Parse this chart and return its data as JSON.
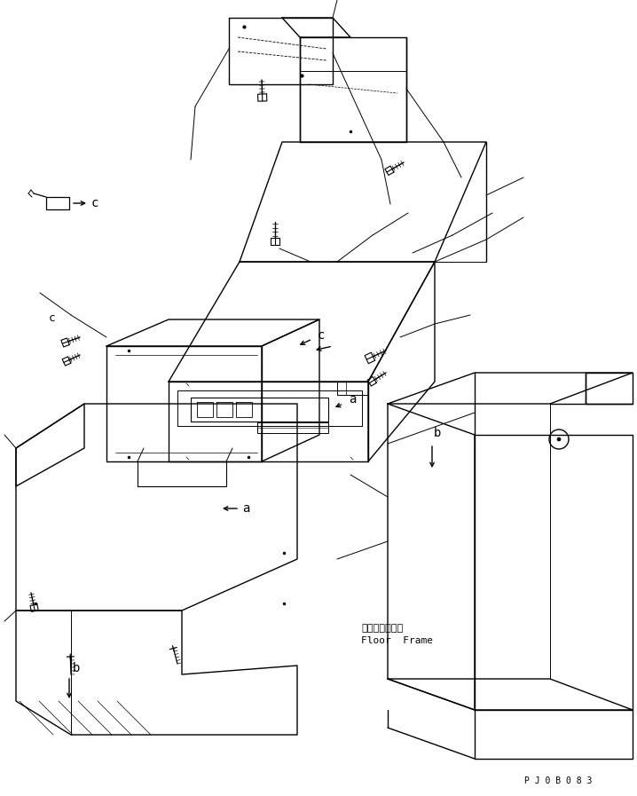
{
  "background_color": "#ffffff",
  "line_color": "#000000",
  "lw": 1.0,
  "fig_width": 7.18,
  "fig_height": 8.97,
  "dpi": 100,
  "label_a": "a",
  "label_b": "b",
  "label_c": "c",
  "floor_frame_jp": "フロアフレーム",
  "floor_frame_en": "Floor  Frame",
  "part_code": "PJ0B083",
  "font_label": 10,
  "font_small": 8,
  "font_code": 7
}
